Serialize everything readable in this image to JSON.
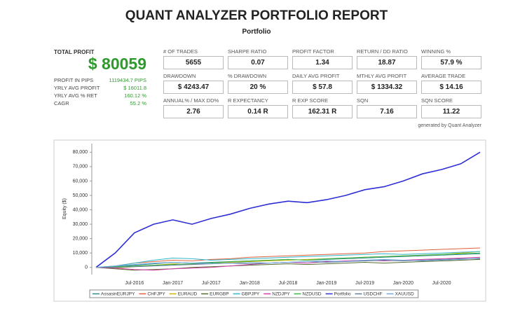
{
  "header": {
    "title": "QUANT ANALYZER PORTFOLIO REPORT",
    "subtitle": "Portfolio"
  },
  "summary": {
    "label": "TOTAL PROFIT",
    "value": "$ 80059",
    "rows": [
      {
        "label": "PROFIT IN PIPS",
        "value": "1119434.7 PIPS"
      },
      {
        "label": "YRLY AVG PROFIT",
        "value": "$ 16011.8"
      },
      {
        "label": "YRLY AVG % RET",
        "value": "160.12 %"
      },
      {
        "label": "CAGR",
        "value": "55.2 %"
      }
    ]
  },
  "stats": [
    {
      "label": "# OF TRADES",
      "value": "5655"
    },
    {
      "label": "SHARPE RATIO",
      "value": "0.07"
    },
    {
      "label": "PROFIT FACTOR",
      "value": "1.34"
    },
    {
      "label": "RETURN / DD RATIO",
      "value": "18.87"
    },
    {
      "label": "WINNING %",
      "value": "57.9 %"
    },
    {
      "label": "DRAWDOWN",
      "value": "$ 4243.47"
    },
    {
      "label": "% DRAWDOWN",
      "value": "20 %"
    },
    {
      "label": "DAILY AVG PROFIT",
      "value": "$ 57.8"
    },
    {
      "label": "MTHLY AVG PROFIT",
      "value": "$ 1334.32"
    },
    {
      "label": "AVERAGE TRADE",
      "value": "$ 14.16"
    },
    {
      "label": "ANNUAL% / MAX DD%",
      "value": "2.76"
    },
    {
      "label": "R EXPECTANCY",
      "value": "0.14 R"
    },
    {
      "label": "R EXP SCORE",
      "value": "162.31 R"
    },
    {
      "label": "SQN",
      "value": "7.16"
    },
    {
      "label": "SQN SCORE",
      "value": "11.22"
    }
  ],
  "note": "generated by Quant Analyzer",
  "chart_data": {
    "type": "line",
    "y_label": "Equity ($)",
    "x": [
      "Feb-2016",
      "Apr-2016",
      "Jul-2016",
      "Oct-2016",
      "Jan-2017",
      "Apr-2017",
      "Jul-2017",
      "Oct-2017",
      "Jan-2018",
      "Apr-2018",
      "Jul-2018",
      "Oct-2018",
      "Jan-2019",
      "Apr-2019",
      "Jul-2019",
      "Oct-2019",
      "Jan-2020",
      "Apr-2020",
      "Jul-2020",
      "Oct-2020",
      "Dec-2020"
    ],
    "xticks": [
      "Jul-2016",
      "Jan-2017",
      "Jul-2017",
      "Jan-2018",
      "Jul-2018",
      "Jan-2019",
      "Jul-2019",
      "Jan-2020",
      "Jul-2020"
    ],
    "ylim": [
      -5000,
      86000
    ],
    "yticks": [
      0,
      {
        "value": 10000,
        "label": "10,000"
      },
      {
        "value": 20000,
        "label": "20,000"
      },
      {
        "value": 30000,
        "label": "30,000"
      },
      {
        "value": 40000,
        "label": "40,000"
      },
      {
        "value": 50000,
        "label": "50,000"
      },
      {
        "value": 60000,
        "label": "60,000"
      },
      {
        "value": 70000,
        "label": "70,000"
      },
      {
        "value": 80000,
        "label": "80,000"
      }
    ],
    "grid": false,
    "legend": "bottom",
    "series": [
      {
        "name": "AssasinEURJPY",
        "color": "#2e8b8b",
        "values": [
          0,
          500,
          1500,
          2500,
          3500,
          3000,
          3500,
          4000,
          4500,
          5000,
          5500,
          5000,
          5500,
          6000,
          6500,
          7000,
          7500,
          8000,
          8500,
          9000,
          9500
        ]
      },
      {
        "name": "CHFJPY",
        "color": "#e0603a",
        "values": [
          0,
          1000,
          3000,
          4000,
          5000,
          4500,
          5500,
          6000,
          7000,
          7500,
          8000,
          8500,
          9000,
          9500,
          10000,
          11000,
          11500,
          12000,
          12500,
          13000,
          13500
        ]
      },
      {
        "name": "EURAUD",
        "color": "#c8b400",
        "values": [
          0,
          -500,
          500,
          1500,
          2500,
          2000,
          3000,
          3500,
          4000,
          4500,
          5000,
          5500,
          6000,
          6500,
          7000,
          7500,
          8000,
          8500,
          9000,
          10000,
          11000
        ]
      },
      {
        "name": "EURGBP",
        "color": "#556b2f",
        "values": [
          0,
          -1000,
          -2000,
          -1500,
          -1000,
          0,
          500,
          1000,
          1500,
          2000,
          2500,
          2000,
          2500,
          3000,
          3500,
          3000,
          3500,
          4000,
          4500,
          5000,
          5500
        ]
      },
      {
        "name": "GBPJPY",
        "color": "#33b5c9",
        "values": [
          0,
          1000,
          3000,
          5000,
          6500,
          6000,
          5000,
          5500,
          6000,
          6500,
          7000,
          7500,
          8000,
          8500,
          9000,
          9500,
          9000,
          9500,
          10000,
          10500,
          11000
        ]
      },
      {
        "name": "NZDJPY",
        "color": "#d13ca6",
        "values": [
          0,
          -500,
          -1500,
          -2000,
          -1000,
          -500,
          0,
          1000,
          2000,
          3000,
          3500,
          3000,
          4000,
          4500,
          5000,
          4500,
          5000,
          5500,
          6000,
          6500,
          7000
        ]
      },
      {
        "name": "NZDUSD",
        "color": "#3cb44b",
        "values": [
          0,
          500,
          1000,
          1500,
          2000,
          2500,
          3000,
          4000,
          4500,
          5000,
          5500,
          5000,
          6000,
          6500,
          7000,
          7500,
          8000,
          8500,
          9000,
          9500,
          10000
        ]
      },
      {
        "name": "Portfolio",
        "color": "#2e2ed6",
        "values": [
          0,
          10000,
          24000,
          30000,
          33000,
          30000,
          34000,
          37000,
          41000,
          44000,
          46000,
          45000,
          47000,
          50000,
          54000,
          56000,
          60000,
          65000,
          68000,
          72000,
          80000
        ]
      },
      {
        "name": "USDCHF",
        "color": "#607d9b",
        "values": [
          0,
          0,
          500,
          1000,
          1500,
          2000,
          2500,
          3000,
          2500,
          3000,
          3500,
          4000,
          3500,
          4000,
          4500,
          5000,
          4500,
          5000,
          5500,
          6000,
          6000
        ]
      },
      {
        "name": "XAUUSD",
        "color": "#6fa8dc",
        "values": [
          0,
          1000,
          2000,
          3000,
          3500,
          3000,
          2500,
          3000,
          3500,
          3000,
          3500,
          4000,
          4500,
          4000,
          5000,
          5500,
          5000,
          4500,
          5000,
          5500,
          6500
        ]
      }
    ]
  }
}
